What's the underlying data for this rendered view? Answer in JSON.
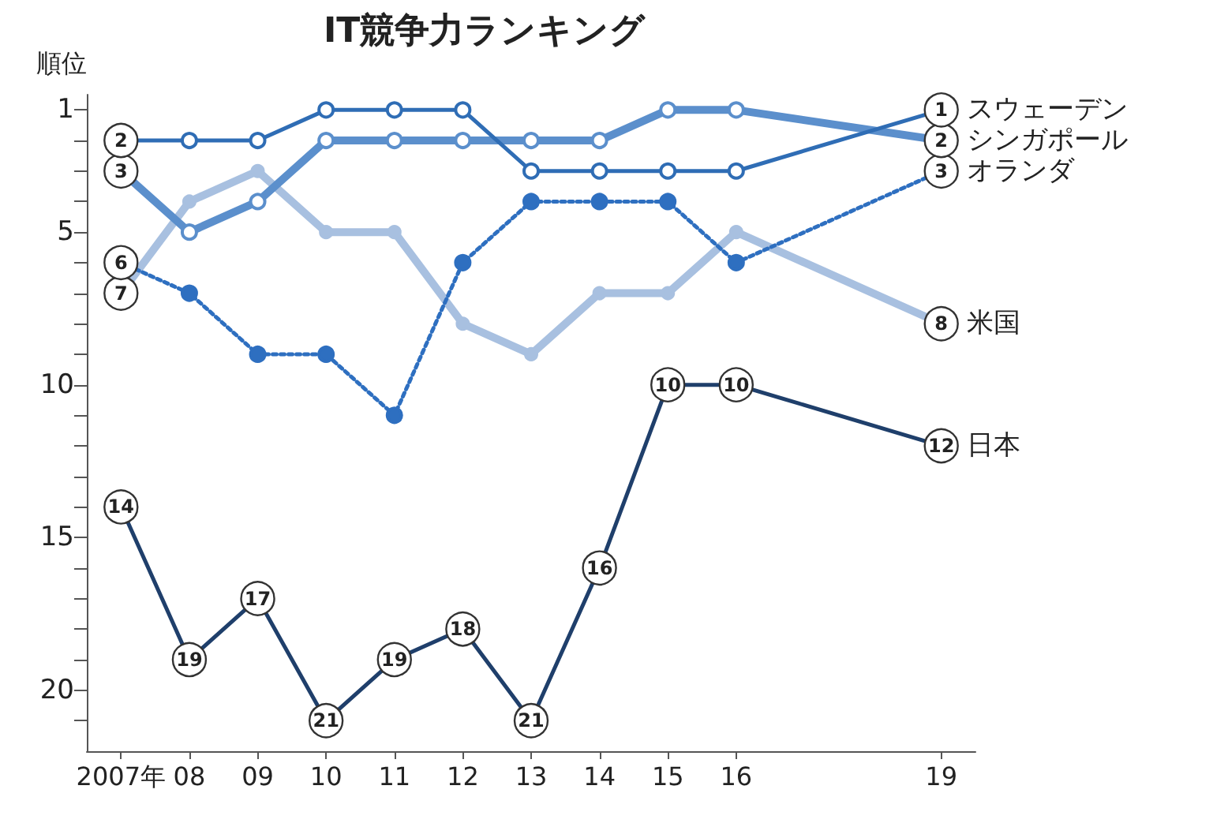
{
  "chart_data": {
    "type": "line",
    "title": "IT競争力ランキング",
    "ylabel": "順位",
    "x": [
      2007,
      2008,
      2009,
      2010,
      2011,
      2012,
      2013,
      2014,
      2015,
      2016,
      2019
    ],
    "xlim": [
      2006.5,
      2019.5
    ],
    "xticks": [
      {
        "value": 2007,
        "label": "2007年"
      },
      {
        "value": 2008,
        "label": "08"
      },
      {
        "value": 2009,
        "label": "09"
      },
      {
        "value": 2010,
        "label": "10"
      },
      {
        "value": 2011,
        "label": "11"
      },
      {
        "value": 2012,
        "label": "12"
      },
      {
        "value": 2013,
        "label": "13"
      },
      {
        "value": 2014,
        "label": "14"
      },
      {
        "value": 2015,
        "label": "15"
      },
      {
        "value": 2016,
        "label": "16"
      },
      {
        "value": 2019,
        "label": "19"
      }
    ],
    "ylim": [
      22,
      0.5
    ],
    "yticks": [
      1,
      {
        "value": 2,
        "label": null
      },
      {
        "value": 3,
        "label": null
      },
      {
        "value": 4,
        "label": null
      },
      5,
      {
        "value": 6,
        "label": null
      },
      {
        "value": 7,
        "label": null
      },
      {
        "value": 8,
        "label": null
      },
      {
        "value": 9,
        "label": null
      },
      10,
      {
        "value": 11,
        "label": null
      },
      {
        "value": 12,
        "label": null
      },
      {
        "value": 13,
        "label": null
      },
      {
        "value": 14,
        "label": null
      },
      15,
      {
        "value": 16,
        "label": null
      },
      {
        "value": 17,
        "label": null
      },
      {
        "value": 18,
        "label": null
      },
      {
        "value": 19,
        "label": null
      },
      20,
      {
        "value": 21,
        "label": null
      }
    ],
    "grid": false,
    "legend": false,
    "line_style": "solid",
    "series": [
      {
        "name": "スウェーデン",
        "color": "#2f6db5",
        "marker": "circle",
        "values": [
          2,
          2,
          2,
          1,
          1,
          1,
          3,
          3,
          3,
          3,
          1
        ],
        "value_labels": [
          "2",
          null,
          null,
          null,
          null,
          null,
          null,
          null,
          null,
          null,
          "1"
        ]
      },
      {
        "name": "シンガポール",
        "color": "#5b8fcc",
        "marker": "circle",
        "values": [
          3,
          5,
          4,
          2,
          2,
          2,
          2,
          2,
          1,
          1,
          2
        ],
        "value_labels": [
          "3",
          null,
          null,
          null,
          null,
          null,
          null,
          null,
          null,
          null,
          "2"
        ]
      },
      {
        "name": "オランダ",
        "color": "#2e6fc0",
        "marker": "circle",
        "line_style": "dotted",
        "values": [
          6,
          7,
          9,
          9,
          11,
          6,
          4,
          4,
          4,
          6,
          3
        ],
        "value_labels": [
          "6",
          null,
          null,
          null,
          null,
          null,
          null,
          null,
          null,
          null,
          "3"
        ]
      },
      {
        "name": "米国",
        "color": "#a8c0e0",
        "marker": "circle",
        "values": [
          7,
          4,
          3,
          5,
          5,
          8,
          9,
          7,
          7,
          5,
          8
        ],
        "value_labels": [
          "7",
          null,
          null,
          null,
          null,
          null,
          null,
          null,
          null,
          null,
          "8"
        ]
      },
      {
        "name": "日本",
        "color": "#1f3f6b",
        "marker": "circle",
        "values": [
          14,
          19,
          17,
          21,
          19,
          18,
          21,
          16,
          10,
          10,
          12
        ],
        "value_labels": [
          "14",
          "19",
          "17",
          "21",
          "19",
          "18",
          "21",
          "16",
          "10",
          "10",
          "12"
        ]
      }
    ]
  }
}
